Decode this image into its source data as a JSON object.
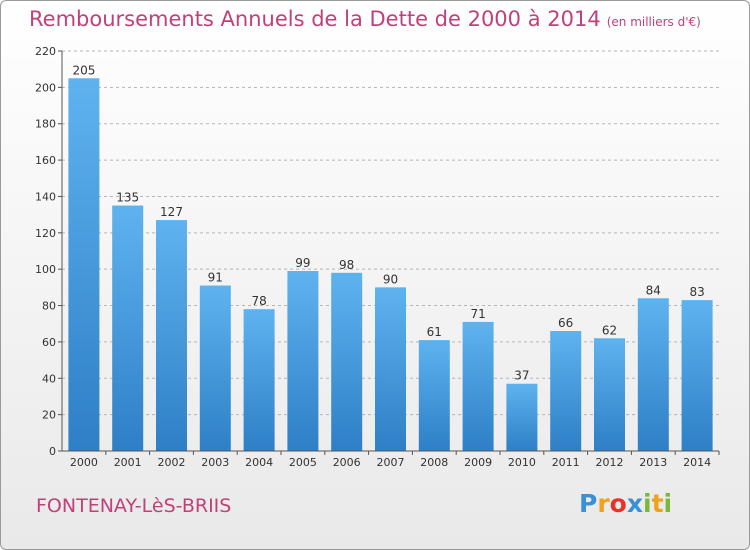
{
  "title": "Remboursements Annuels de la Dette de 2000 à 2014",
  "title_unit": "(en milliers d'€)",
  "commune": "FONTENAY-LèS-BRIIS",
  "logo": {
    "text": "Proxiti",
    "letters": [
      "P",
      "r",
      "o",
      "x",
      "i",
      "t",
      "i"
    ],
    "colors": [
      "#3b8fd6",
      "#f0a21c",
      "#e8332a",
      "#3b8fd6",
      "#7bb83a",
      "#f0a21c",
      "#7bb83a"
    ]
  },
  "colors": {
    "title": "#c0417a",
    "bar_top": "#5eb3ef",
    "bar_bottom": "#2e7fc6",
    "grid": "#b5b5b5"
  },
  "chart_data": {
    "type": "bar",
    "categories": [
      "2000",
      "2001",
      "2002",
      "2003",
      "2004",
      "2005",
      "2006",
      "2007",
      "2008",
      "2009",
      "2010",
      "2011",
      "2012",
      "2013",
      "2014"
    ],
    "values": [
      205,
      135,
      127,
      91,
      78,
      99,
      98,
      90,
      61,
      71,
      37,
      66,
      62,
      84,
      83
    ],
    "yticks": [
      0,
      20,
      40,
      60,
      80,
      100,
      120,
      140,
      160,
      180,
      200,
      220
    ],
    "ylim": [
      0,
      220
    ],
    "grid": true,
    "legend": "none"
  }
}
